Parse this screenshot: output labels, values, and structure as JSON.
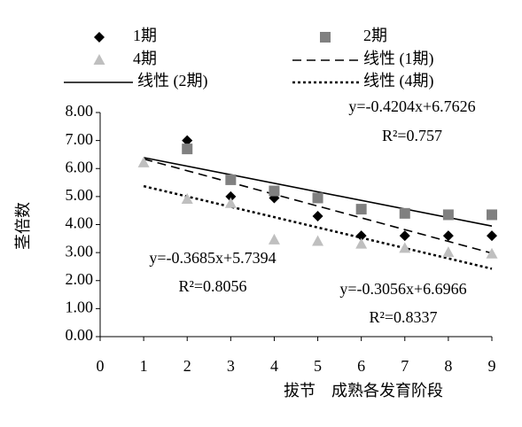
{
  "chart_data": {
    "type": "scatter",
    "x_label": "拔节    成熟各发育阶段",
    "y_label": "茎倍数",
    "x": [
      1,
      2,
      3,
      4,
      5,
      6,
      7,
      8,
      9
    ],
    "xlim": [
      0,
      9
    ],
    "xticks": [
      0,
      1,
      2,
      3,
      4,
      5,
      6,
      7,
      8,
      9
    ],
    "ylim": [
      0,
      8
    ],
    "yticks": [
      {
        "value": 0,
        "label": "0.00"
      },
      {
        "value": 1,
        "label": "1.00"
      },
      {
        "value": 2,
        "label": "2.00"
      },
      {
        "value": 3,
        "label": "3.00"
      },
      {
        "value": 4,
        "label": "4.00"
      },
      {
        "value": 5,
        "label": "5.00"
      },
      {
        "value": 6,
        "label": "6.00"
      },
      {
        "value": 7,
        "label": "7.00"
      },
      {
        "value": 8,
        "label": "8.00"
      }
    ],
    "series": [
      {
        "name": "1期",
        "color": "#000000",
        "marker": "diamond",
        "values": [
          null,
          7.0,
          5.0,
          4.95,
          4.3,
          3.6,
          3.6,
          3.6,
          3.6
        ]
      },
      {
        "name": "2期",
        "color": "#808080",
        "marker": "square",
        "values": [
          null,
          6.7,
          5.6,
          5.2,
          4.95,
          4.55,
          4.4,
          4.35,
          4.35
        ]
      },
      {
        "name": "4期",
        "color": "#bfbfbf",
        "marker": "triangle",
        "values": [
          6.2,
          4.9,
          4.75,
          3.45,
          3.4,
          3.3,
          3.15,
          3.0,
          2.95
        ]
      }
    ],
    "trendlines": [
      {
        "name": "线性 (1期)",
        "style": "dashed",
        "slope": -0.4204,
        "intercept": 6.7626,
        "x_range": [
          1,
          9
        ],
        "equation": "y=-0.4204x+6.7626",
        "r2": "R²=0.757"
      },
      {
        "name": "线性 (2期)",
        "style": "solid",
        "slope": -0.3056,
        "intercept": 6.6966,
        "x_range": [
          1,
          9
        ],
        "equation": "y=-0.3056x+6.6966",
        "r2": "R²=0.8337"
      },
      {
        "name": "线性 (4期)",
        "style": "dotted",
        "slope": -0.3685,
        "intercept": 5.7394,
        "x_range": [
          1,
          9
        ],
        "equation": "y=-0.3685x+5.7394",
        "r2": "R²=0.8056"
      }
    ]
  }
}
